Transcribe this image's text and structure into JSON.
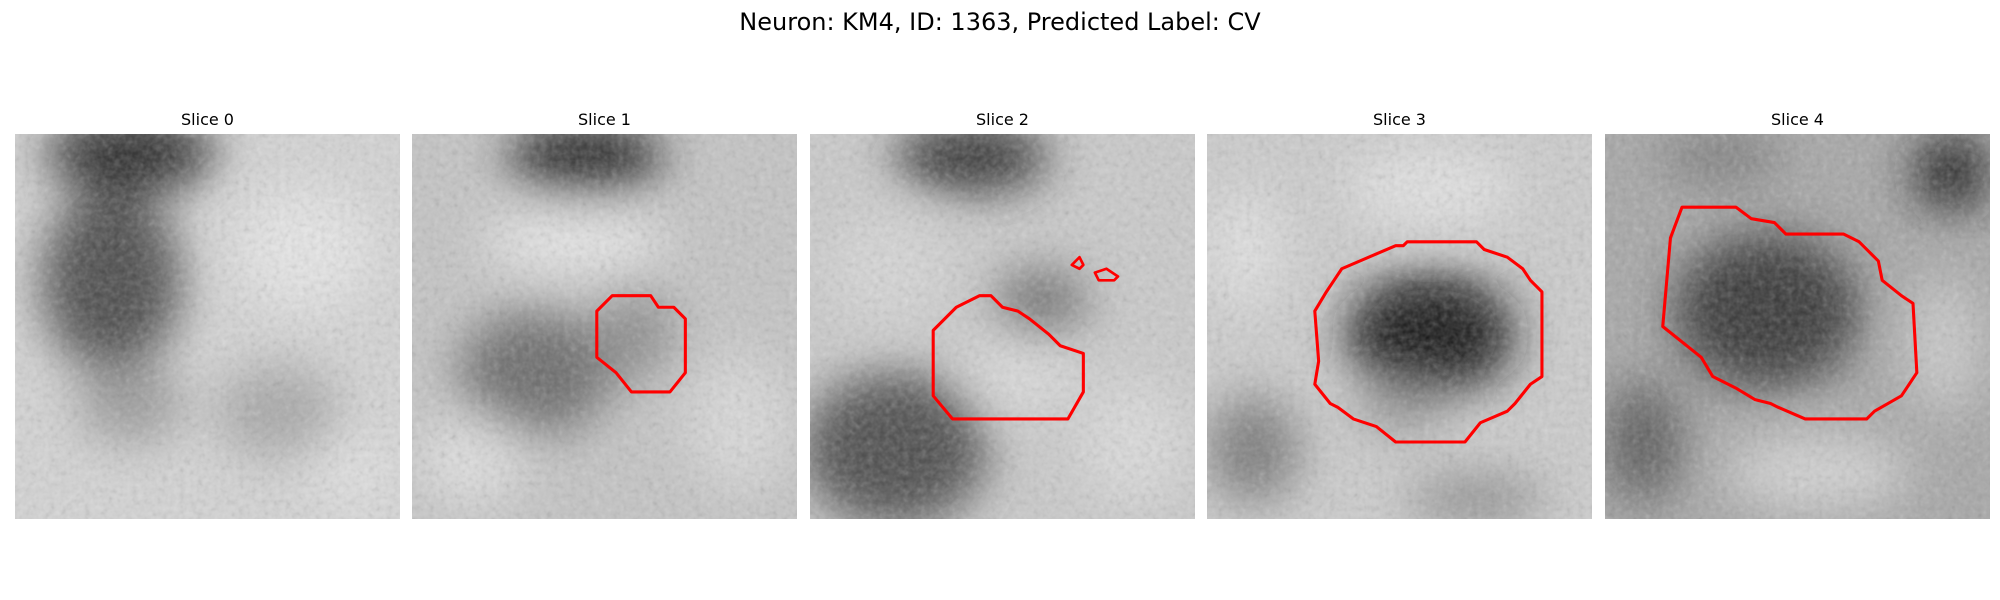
{
  "figure": {
    "title": "Neuron: KM4, ID: 1363, Predicted Label: CV"
  },
  "panels": [
    {
      "title": "Slice 0"
    },
    {
      "title": "Slice 1"
    },
    {
      "title": "Slice 2"
    },
    {
      "title": "Slice 3"
    },
    {
      "title": "Slice 4"
    }
  ],
  "colors": {
    "contour": "#ff0000",
    "background": "#ffffff"
  }
}
